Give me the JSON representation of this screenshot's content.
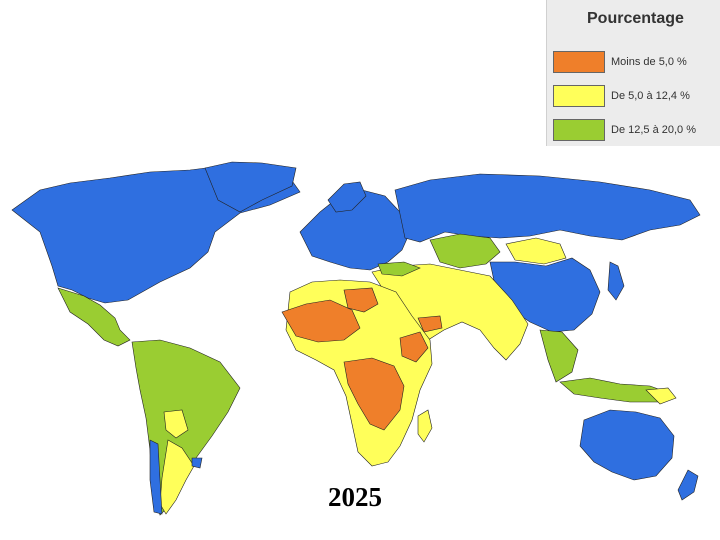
{
  "legend": {
    "title": "Pourcentage",
    "items": [
      {
        "label": "Moins de 5,0 %",
        "color": "#ef7f2a"
      },
      {
        "label": "De 5,0 à 12,4 %",
        "color": "#ffff5a"
      },
      {
        "label": "De 12,5 à 20,0 %",
        "color": "#9acd32"
      }
    ]
  },
  "map": {
    "year": "2025",
    "no_category_color": "#2f6fe0",
    "ocean_color": "#ffffff"
  }
}
